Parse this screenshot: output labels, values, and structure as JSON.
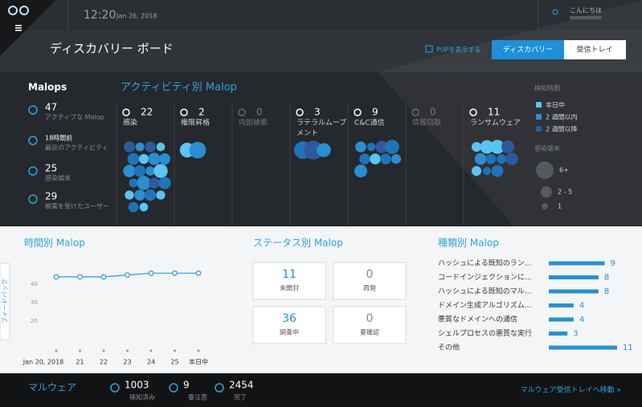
{
  "header": {
    "time": "12:20",
    "date": "Jan 26, 2018",
    "greeting": "こんにちは"
  },
  "title": "ディスカバリー ボード",
  "pup_toggle": "PUPを表示する",
  "tabs": [
    "ディスカバリー",
    "受信トレイ"
  ],
  "malops": {
    "title": "Malops",
    "items": [
      {
        "value": "47",
        "label": "アクティブな Malop"
      },
      {
        "value": "18時間前",
        "label": "最近のアクティビティ"
      },
      {
        "value": "25",
        "label": "感染端末"
      },
      {
        "value": "29",
        "label": "被害を受けたユーザー"
      }
    ]
  },
  "activity": {
    "title": "アクティビティ別 Malop",
    "columns": [
      {
        "count": 22,
        "label": "感染"
      },
      {
        "count": 2,
        "label": "権限昇格"
      },
      {
        "count": 0,
        "label": "内部検索"
      },
      {
        "count": 3,
        "label": "ラテラルムーブメント"
      },
      {
        "count": 9,
        "label": "C&C通信"
      },
      {
        "count": 0,
        "label": "情報窃取"
      },
      {
        "count": 11,
        "label": "ランサムウェア"
      }
    ]
  },
  "legend": {
    "time_title": "検知時期",
    "time_items": [
      {
        "label": "本日中",
        "color": "#5cc3f2"
      },
      {
        "label": "2 週間以内",
        "color": "#2a8fd0"
      },
      {
        "label": "2 週間以降",
        "color": "#2c5a9c"
      }
    ],
    "size_title": "感染端末",
    "size_items": [
      "6+",
      "2 - 5",
      "1"
    ]
  },
  "feedback": "フィードバック",
  "chart_data": [
    {
      "type": "line",
      "title": "時間別 Malop",
      "categories": [
        "Jan 20, 2018",
        "21",
        "22",
        "23",
        "24",
        "25",
        "本日中"
      ],
      "values": [
        44,
        44,
        44,
        45,
        46,
        46,
        46
      ],
      "color": "#2a9ad8",
      "ylim": [
        4,
        47
      ],
      "yticks": [
        20,
        30,
        40
      ]
    },
    {
      "type": "hbar",
      "title": "種類別 Malop",
      "categories": [
        "ハッシュによる既知のラン...",
        "コードインジェクションに...",
        "ハッシュによる既知のマル...",
        "ドメイン生成アルゴリズム...",
        "悪質なドメインへの通信",
        "シェルプロセスの悪質な実行",
        "その他"
      ],
      "values": [
        9,
        8,
        8,
        4,
        4,
        3,
        11
      ],
      "color": "#2a8fd0",
      "xlim": [
        0,
        11
      ]
    }
  ],
  "status": {
    "title": "ステータス別 Malop",
    "items": [
      {
        "value": 11,
        "label": "未開封"
      },
      {
        "value": 0,
        "label": "再発"
      },
      {
        "value": 36,
        "label": "調査中"
      },
      {
        "value": 0,
        "label": "要確認"
      }
    ]
  },
  "footer": {
    "title": "マルウェア",
    "items": [
      {
        "value": 1003,
        "label": "検知済み"
      },
      {
        "value": 9,
        "label": "要注意"
      },
      {
        "value": 2454,
        "label": "完了"
      }
    ],
    "link": "マルウェア受信トレイへ移動 »"
  }
}
